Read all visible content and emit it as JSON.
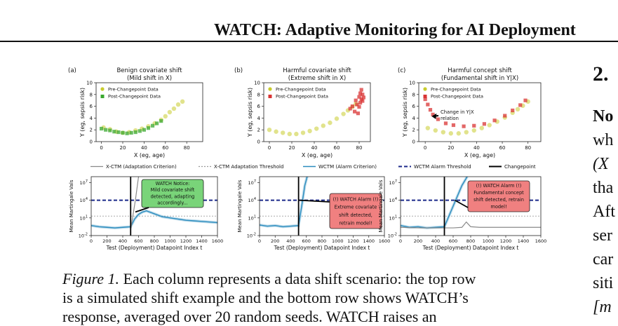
{
  "header": {
    "running_title": "WATCH: Adaptive Monitoring for AI Deployment"
  },
  "right_column": {
    "section_number": "2.",
    "lines": [
      "No",
      "wh",
      "(X",
      "tha",
      "Aft",
      "ser",
      "car",
      "siti",
      "[m"
    ]
  },
  "caption": {
    "label": "Figure 1.",
    "line1_rest": " Each column represents a data shift scenario: the top row",
    "line2": "is a simulated shift example and the bottom row shows WATCH’s",
    "line3": "response, averaged over 20 random seeds. WATCH raises an"
  },
  "legend_bottom": [
    "X-CTM (Adaptation Criterion)",
    "X-CTM Adaptation Threshold",
    "WCTM (Alarm Criterion)",
    "WCTM Alarm Threshold",
    "Changepoint"
  ],
  "colors": {
    "pre": "#c8cc2e",
    "post_benign": "#3aa830",
    "post_harmful": "#d93434",
    "wctm": "#2b8cbe",
    "xctm": "#8a8a8a",
    "threshold": "#1c2a8a",
    "notice": "#79d479",
    "alarm": "#f08080"
  },
  "chart_data": [
    {
      "type": "scatter",
      "panel": "(a)",
      "title": "Benign covariate shift",
      "subtitle": "(Mild shift in X)",
      "xlabel": "X (eg, age)",
      "ylabel": "Y (eg, sepsis risk)",
      "xlim": [
        -5,
        95
      ],
      "ylim": [
        0,
        10
      ],
      "xticks": [
        0,
        20,
        40,
        60,
        80
      ],
      "yticks": [
        0,
        2,
        4,
        6,
        8,
        10
      ],
      "legend": [
        "Pre-Changepoint Data",
        "Post-Changepoint Data"
      ],
      "series": [
        {
          "name": "Pre-Changepoint Data",
          "points": [
            [
              2,
              2.4
            ],
            [
              8,
              2.1
            ],
            [
              14,
              1.7
            ],
            [
              20,
              1.5
            ],
            [
              26,
              1.6
            ],
            [
              32,
              1.9
            ],
            [
              38,
              2.2
            ],
            [
              44,
              2.6
            ],
            [
              50,
              3.1
            ],
            [
              56,
              3.7
            ],
            [
              60,
              4.3
            ],
            [
              64,
              5.0
            ],
            [
              68,
              5.6
            ],
            [
              72,
              6.3
            ],
            [
              76,
              6.8
            ]
          ]
        },
        {
          "name": "Post-Changepoint Data",
          "points": [
            [
              0,
              2.2
            ],
            [
              4,
              2.0
            ],
            [
              8,
              1.9
            ],
            [
              12,
              1.7
            ],
            [
              16,
              1.6
            ],
            [
              20,
              1.5
            ],
            [
              24,
              1.4
            ],
            [
              28,
              1.5
            ],
            [
              32,
              1.6
            ],
            [
              36,
              1.8
            ],
            [
              40,
              2.0
            ],
            [
              44,
              2.3
            ],
            [
              48,
              2.7
            ],
            [
              52,
              3.1
            ],
            [
              56,
              3.5
            ]
          ]
        }
      ]
    },
    {
      "type": "scatter",
      "panel": "(b)",
      "title": "Harmful covariate shift",
      "subtitle": "(Extreme shift in X)",
      "xlabel": "X (eg, age)",
      "ylabel": "Y (eg, sepsis risk)",
      "xlim": [
        -5,
        90
      ],
      "ylim": [
        0,
        10
      ],
      "xticks": [
        0,
        20,
        40,
        60,
        80
      ],
      "yticks": [
        0,
        2,
        4,
        6,
        8,
        10
      ],
      "legend": [
        "Pre-Changepoint Data",
        "Post-Changepoint Data"
      ],
      "series": [
        {
          "name": "Pre-Changepoint Data",
          "points": [
            [
              0,
              2.0
            ],
            [
              6,
              1.7
            ],
            [
              12,
              1.5
            ],
            [
              18,
              1.3
            ],
            [
              24,
              1.3
            ],
            [
              30,
              1.5
            ],
            [
              36,
              1.8
            ],
            [
              42,
              2.2
            ],
            [
              48,
              2.7
            ],
            [
              54,
              3.2
            ],
            [
              60,
              3.9
            ],
            [
              66,
              4.7
            ],
            [
              70,
              5.3
            ],
            [
              74,
              5.9
            ],
            [
              77,
              6.4
            ]
          ]
        },
        {
          "name": "Post-Changepoint Data",
          "points": [
            [
              72,
              5.6
            ],
            [
              74,
              6.0
            ],
            [
              76,
              5.1
            ],
            [
              77,
              7.0
            ],
            [
              78,
              6.3
            ],
            [
              79,
              4.8
            ],
            [
              80,
              7.6
            ],
            [
              80,
              5.9
            ],
            [
              81,
              8.2
            ],
            [
              81,
              6.6
            ],
            [
              82,
              7.2
            ],
            [
              82,
              8.8
            ],
            [
              83,
              6.9
            ],
            [
              83,
              8.0
            ],
            [
              84,
              7.5
            ]
          ]
        }
      ]
    },
    {
      "type": "scatter",
      "panel": "(c)",
      "title": "Harmful concept shift",
      "subtitle": "(Fundamental shift in Y|X)",
      "xlabel": "X (eg, age)",
      "ylabel": "Y (eg, sepsis risk)",
      "xlim": [
        -5,
        90
      ],
      "ylim": [
        0,
        10
      ],
      "xticks": [
        0,
        20,
        40,
        60,
        80
      ],
      "yticks": [
        0,
        2,
        4,
        6,
        8,
        10
      ],
      "legend": [
        "Pre-Changepoint Data",
        "Post-Changepoint Data"
      ],
      "annotation": "Change in Y|X relation",
      "series": [
        {
          "name": "Pre-Changepoint Data",
          "points": [
            [
              2,
              2.3
            ],
            [
              8,
              1.9
            ],
            [
              14,
              1.6
            ],
            [
              20,
              1.4
            ],
            [
              26,
              1.4
            ],
            [
              32,
              1.6
            ],
            [
              38,
              1.9
            ],
            [
              44,
              2.3
            ],
            [
              50,
              2.8
            ],
            [
              56,
              3.4
            ],
            [
              62,
              4.1
            ],
            [
              68,
              4.9
            ],
            [
              72,
              5.5
            ],
            [
              76,
              6.1
            ],
            [
              80,
              6.8
            ]
          ]
        },
        {
          "name": "Post-Changepoint Data",
          "points": [
            [
              0,
              7.2
            ],
            [
              2,
              6.3
            ],
            [
              4,
              5.4
            ],
            [
              6,
              4.6
            ],
            [
              10,
              3.8
            ],
            [
              16,
              3.1
            ],
            [
              22,
              2.8
            ],
            [
              30,
              2.6
            ],
            [
              38,
              2.7
            ],
            [
              46,
              3.0
            ],
            [
              54,
              3.6
            ],
            [
              62,
              4.4
            ],
            [
              68,
              5.3
            ],
            [
              74,
              6.2
            ],
            [
              78,
              7.0
            ]
          ]
        }
      ]
    },
    {
      "type": "line",
      "panel": "(a) bottom",
      "xlabel": "Test (Deployment) Datapoint Index t",
      "ylabel": "Mean Martingale Vals",
      "xlim": [
        0,
        1600
      ],
      "xticks": [
        0,
        200,
        400,
        600,
        800,
        1000,
        1200,
        1400,
        1600
      ],
      "y_scale": "log",
      "ylim_exp": [
        -2,
        8
      ],
      "yticks": [
        "10^-2",
        "10^1",
        "10^4",
        "10^7"
      ],
      "changepoint": 500,
      "callout": {
        "style": "notice",
        "lines": [
          "WATCH Notice:",
          "Mild covariate shift",
          "detected, adapting",
          "accordingly..."
        ]
      },
      "series": [
        {
          "name": "WCTM (Alarm Criterion)",
          "log10_values": [
            [
              0,
              -0.3
            ],
            [
              100,
              -0.5
            ],
            [
              200,
              -0.6
            ],
            [
              300,
              -0.7
            ],
            [
              400,
              -0.6
            ],
            [
              500,
              -0.5
            ],
            [
              550,
              0.8
            ],
            [
              600,
              1.6
            ],
            [
              650,
              2.0
            ],
            [
              700,
              2.2
            ],
            [
              800,
              1.7
            ],
            [
              900,
              1.2
            ],
            [
              1000,
              1.0
            ],
            [
              1100,
              0.8
            ],
            [
              1200,
              0.6
            ],
            [
              1300,
              0.5
            ],
            [
              1400,
              0.4
            ],
            [
              1500,
              0.3
            ],
            [
              1600,
              0.2
            ]
          ]
        },
        {
          "name": "X-CTM (Adaptation Criterion)",
          "log10_values": [
            [
              500,
              -1.0
            ],
            [
              560,
              4.0
            ],
            [
              600,
              8.0
            ]
          ]
        }
      ]
    },
    {
      "type": "line",
      "panel": "(b) bottom",
      "xlabel": "Test (Deployment) Datapoint Index t",
      "ylabel": "Mean Martingale Vals",
      "xlim": [
        0,
        1600
      ],
      "xticks": [
        0,
        200,
        400,
        600,
        800,
        1000,
        1200,
        1400,
        1600
      ],
      "y_scale": "log",
      "ylim_exp": [
        -2,
        8
      ],
      "yticks": [
        "10^-2",
        "10^1",
        "10^4",
        "10^7"
      ],
      "changepoint": 500,
      "callout": {
        "style": "alarm",
        "lines": [
          "(!) WATCH Alarm (!)",
          "Extreme covariate",
          "shift detected,",
          "retrain model!"
        ]
      },
      "series": [
        {
          "name": "WCTM (Alarm Criterion)",
          "log10_values": [
            [
              0,
              -0.2
            ],
            [
              100,
              -0.4
            ],
            [
              200,
              -0.3
            ],
            [
              300,
              -0.5
            ],
            [
              400,
              -0.4
            ],
            [
              500,
              -0.3
            ],
            [
              540,
              3.0
            ],
            [
              580,
              6.5
            ],
            [
              610,
              8.0
            ]
          ]
        }
      ]
    },
    {
      "type": "line",
      "panel": "(c) bottom",
      "xlabel": "Test (Deployment) Datapoint Index t",
      "ylabel": "Mean Martingale Vals",
      "xlim": [
        0,
        1600
      ],
      "xticks": [
        0,
        200,
        400,
        600,
        800,
        1000,
        1200,
        1400,
        1600
      ],
      "y_scale": "log",
      "ylim_exp": [
        -2,
        8
      ],
      "yticks": [
        "10^-2",
        "10^1",
        "10^4",
        "10^7"
      ],
      "changepoint": 500,
      "callout": {
        "style": "alarm",
        "lines": [
          "(!) WATCH Alarm (!)",
          "Fundamental concept",
          "shift detected, retrain",
          "model!"
        ]
      },
      "series": [
        {
          "name": "WCTM (Alarm Criterion)",
          "log10_values": [
            [
              0,
              -0.3
            ],
            [
              100,
              -0.6
            ],
            [
              200,
              -0.5
            ],
            [
              300,
              -0.7
            ],
            [
              400,
              -0.6
            ],
            [
              500,
              -0.5
            ],
            [
              600,
              3.0
            ],
            [
              700,
              6.5
            ],
            [
              760,
              8.0
            ]
          ]
        },
        {
          "name": "X-CTM (Adaptation Criterion)",
          "log10_values": [
            [
              0,
              -0.6
            ],
            [
              200,
              -0.7
            ],
            [
              400,
              -0.7
            ],
            [
              600,
              -0.7
            ],
            [
              700,
              -0.6
            ],
            [
              750,
              0.3
            ],
            [
              800,
              -0.5
            ],
            [
              900,
              -0.6
            ],
            [
              1200,
              -0.6
            ],
            [
              1600,
              -0.6
            ]
          ]
        }
      ]
    }
  ]
}
